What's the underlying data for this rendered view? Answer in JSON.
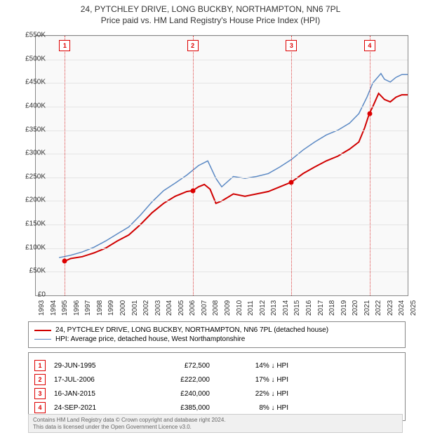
{
  "title_line1": "24, PYTCHLEY DRIVE, LONG BUCKBY, NORTHAMPTON, NN6 7PL",
  "title_line2": "Price paid vs. HM Land Registry's House Price Index (HPI)",
  "chart": {
    "type": "line",
    "background_color": "#f9f9f9",
    "grid_color": "#e5e5e5",
    "border_color": "#888888",
    "y": {
      "min": 0,
      "max": 550000,
      "step": 50000,
      "ticks": [
        "£0",
        "£50K",
        "£100K",
        "£150K",
        "£200K",
        "£250K",
        "£300K",
        "£350K",
        "£400K",
        "£450K",
        "£500K",
        "£550K"
      ]
    },
    "x": {
      "min": 1993,
      "max": 2025,
      "ticks": [
        1993,
        1994,
        1995,
        1996,
        1997,
        1998,
        1999,
        2000,
        2001,
        2002,
        2003,
        2004,
        2005,
        2006,
        2007,
        2008,
        2009,
        2010,
        2011,
        2012,
        2013,
        2014,
        2015,
        2016,
        2017,
        2018,
        2019,
        2020,
        2021,
        2022,
        2023,
        2024,
        2025
      ]
    },
    "series_red": {
      "label": "24, PYTCHLEY DRIVE, LONG BUCKBY, NORTHAMPTON, NN6 7PL (detached house)",
      "color": "#d00000",
      "line_width": 2,
      "points": [
        [
          1995.5,
          72500
        ],
        [
          1996,
          78000
        ],
        [
          1997,
          82000
        ],
        [
          1998,
          90000
        ],
        [
          1999,
          100000
        ],
        [
          2000,
          115000
        ],
        [
          2001,
          128000
        ],
        [
          2002,
          150000
        ],
        [
          2003,
          175000
        ],
        [
          2004,
          195000
        ],
        [
          2005,
          210000
        ],
        [
          2006,
          220000
        ],
        [
          2006.5,
          222000
        ],
        [
          2007,
          230000
        ],
        [
          2007.5,
          235000
        ],
        [
          2008,
          225000
        ],
        [
          2008.5,
          195000
        ],
        [
          2009,
          200000
        ],
        [
          2010,
          215000
        ],
        [
          2011,
          210000
        ],
        [
          2012,
          215000
        ],
        [
          2013,
          220000
        ],
        [
          2014,
          230000
        ],
        [
          2015,
          240000
        ],
        [
          2016,
          258000
        ],
        [
          2017,
          272000
        ],
        [
          2018,
          285000
        ],
        [
          2019,
          295000
        ],
        [
          2020,
          310000
        ],
        [
          2020.8,
          325000
        ],
        [
          2021.3,
          355000
        ],
        [
          2021.7,
          385000
        ],
        [
          2022,
          400000
        ],
        [
          2022.5,
          428000
        ],
        [
          2023,
          415000
        ],
        [
          2023.5,
          410000
        ],
        [
          2024,
          420000
        ],
        [
          2024.5,
          425000
        ],
        [
          2025,
          425000
        ]
      ]
    },
    "series_blue": {
      "label": "HPI: Average price, detached house, West Northamptonshire",
      "color": "#5b89c4",
      "line_width": 1.5,
      "points": [
        [
          1995,
          80000
        ],
        [
          1996,
          85000
        ],
        [
          1997,
          92000
        ],
        [
          1998,
          102000
        ],
        [
          1999,
          115000
        ],
        [
          2000,
          130000
        ],
        [
          2001,
          145000
        ],
        [
          2002,
          170000
        ],
        [
          2003,
          198000
        ],
        [
          2004,
          222000
        ],
        [
          2005,
          238000
        ],
        [
          2006,
          255000
        ],
        [
          2007,
          275000
        ],
        [
          2007.8,
          285000
        ],
        [
          2008.5,
          248000
        ],
        [
          2009,
          230000
        ],
        [
          2010,
          252000
        ],
        [
          2011,
          248000
        ],
        [
          2012,
          252000
        ],
        [
          2013,
          258000
        ],
        [
          2014,
          272000
        ],
        [
          2015,
          288000
        ],
        [
          2016,
          308000
        ],
        [
          2017,
          325000
        ],
        [
          2018,
          340000
        ],
        [
          2019,
          350000
        ],
        [
          2020,
          365000
        ],
        [
          2020.8,
          385000
        ],
        [
          2021.5,
          420000
        ],
        [
          2022,
          450000
        ],
        [
          2022.7,
          470000
        ],
        [
          2023,
          458000
        ],
        [
          2023.5,
          452000
        ],
        [
          2024,
          462000
        ],
        [
          2024.5,
          468000
        ],
        [
          2025,
          468000
        ]
      ]
    },
    "sale_markers": [
      {
        "n": "1",
        "year": 1995.5,
        "price": 72500
      },
      {
        "n": "2",
        "year": 2006.5,
        "price": 222000
      },
      {
        "n": "3",
        "year": 2015.0,
        "price": 240000
      },
      {
        "n": "4",
        "year": 2021.73,
        "price": 385000
      }
    ],
    "marker_vline_color": "#d44444"
  },
  "legend": {
    "rows": [
      {
        "color": "#d00000",
        "width": 2,
        "label": "24, PYTCHLEY DRIVE, LONG BUCKBY, NORTHAMPTON, NN6 7PL (detached house)"
      },
      {
        "color": "#5b89c4",
        "width": 1.5,
        "label": "HPI: Average price, detached house, West Northamptonshire"
      }
    ]
  },
  "sales_table": {
    "arrow": "↓",
    "hpi_label": "HPI",
    "rows": [
      {
        "n": "1",
        "date": "29-JUN-1995",
        "price": "£72,500",
        "diff": "14%"
      },
      {
        "n": "2",
        "date": "17-JUL-2006",
        "price": "£222,000",
        "diff": "17%"
      },
      {
        "n": "3",
        "date": "16-JAN-2015",
        "price": "£240,000",
        "diff": "22%"
      },
      {
        "n": "4",
        "date": "24-SEP-2021",
        "price": "£385,000",
        "diff": "8%"
      }
    ]
  },
  "footer": {
    "line1": "Contains HM Land Registry data © Crown copyright and database right 2024.",
    "line2": "This data is licensed under the Open Government Licence v3.0."
  }
}
